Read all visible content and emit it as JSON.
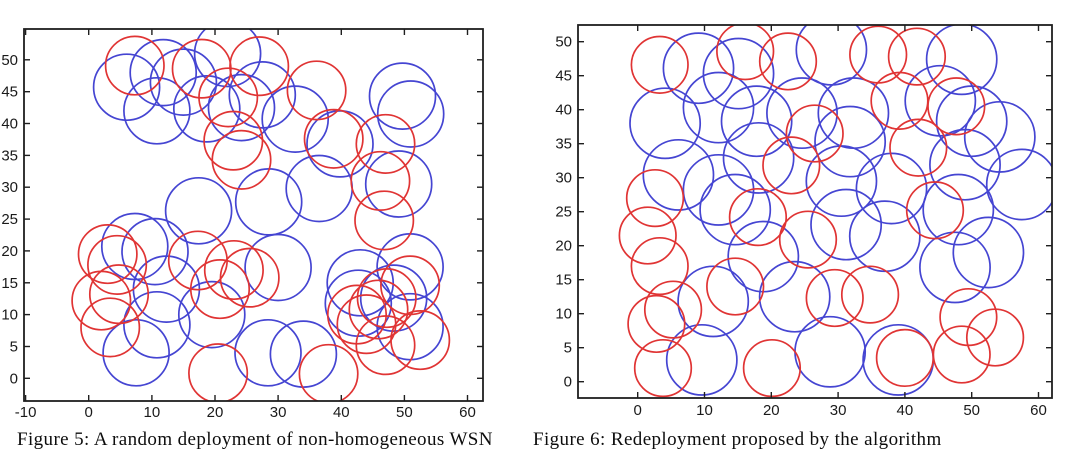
{
  "colors": {
    "blue_sensor": "#4545d2",
    "red_sensor": "#e03434",
    "axis": "#1f1f1f",
    "background": "#ffffff"
  },
  "captions": {
    "fig5": "Figure 5: A random deployment of non-homogeneous WSN",
    "fig6": "Figure 6: Redeployment proposed by the algorithm"
  },
  "chart_data": [
    {
      "id": "fig5",
      "type": "scatter",
      "title": "",
      "caption": "Figure 5: A random deployment of non-homogeneous WSN",
      "xlabel": "",
      "ylabel": "",
      "xlim": [
        -10.25,
        62.45
      ],
      "ylim": [
        -3.56,
        54.84
      ],
      "xticks": [
        -10,
        0,
        10,
        20,
        30,
        40,
        50,
        60
      ],
      "yticks": [
        0,
        5,
        10,
        15,
        20,
        25,
        30,
        35,
        40,
        45,
        50
      ],
      "grid": false,
      "legend": "none",
      "series": [
        {
          "name": "blue-sensor-coverage",
          "color_key": "blue_sensor",
          "marker": "open-circle",
          "radius_units": 5.2,
          "centers": [
            [
              6.0,
              45.7
            ],
            [
              11.8,
              48.0
            ],
            [
              15.0,
              46.5
            ],
            [
              10.8,
              42.0
            ],
            [
              18.7,
              42.3
            ],
            [
              22.0,
              51.0
            ],
            [
              24.2,
              42.5
            ],
            [
              27.5,
              44.5
            ],
            [
              32.7,
              40.7
            ],
            [
              39.8,
              36.8
            ],
            [
              49.7,
              44.3
            ],
            [
              51.0,
              41.5
            ],
            [
              49.1,
              30.5
            ],
            [
              36.5,
              29.8
            ],
            [
              28.5,
              27.7
            ],
            [
              17.4,
              26.3
            ],
            [
              7.3,
              20.7
            ],
            [
              10.5,
              19.9
            ],
            [
              12.3,
              14.0
            ],
            [
              10.8,
              8.4
            ],
            [
              7.5,
              4.0
            ],
            [
              19.5,
              10.0
            ],
            [
              28.4,
              4.0
            ],
            [
              34.0,
              3.8
            ],
            [
              30.0,
              17.4
            ],
            [
              43.0,
              15.0
            ],
            [
              48.3,
              12.6
            ],
            [
              50.9,
              17.5
            ],
            [
              42.7,
              11.8
            ],
            [
              50.9,
              8.1
            ]
          ]
        },
        {
          "name": "red-sensor-coverage",
          "color_key": "red_sensor",
          "marker": "open-circle",
          "radius_units": 4.6,
          "centers": [
            [
              7.3,
              49.1
            ],
            [
              17.9,
              48.6
            ],
            [
              27.0,
              49.0
            ],
            [
              22.1,
              44.1
            ],
            [
              36.1,
              45.2
            ],
            [
              38.8,
              37.6
            ],
            [
              47.0,
              36.8
            ],
            [
              46.2,
              31.0
            ],
            [
              46.8,
              24.8
            ],
            [
              22.9,
              37.3
            ],
            [
              24.2,
              34.3
            ],
            [
              3.0,
              19.5
            ],
            [
              4.5,
              17.8
            ],
            [
              2.0,
              12.2
            ],
            [
              4.8,
              13.2
            ],
            [
              3.4,
              8.0
            ],
            [
              17.3,
              18.5
            ],
            [
              20.8,
              14.0
            ],
            [
              23.0,
              17.0
            ],
            [
              25.5,
              15.8
            ],
            [
              20.5,
              0.8
            ],
            [
              38.0,
              0.7
            ],
            [
              42.5,
              10.0
            ],
            [
              44.0,
              8.5
            ],
            [
              45.9,
              10.8
            ],
            [
              47.2,
              12.6
            ],
            [
              50.9,
              14.6
            ],
            [
              47.0,
              5.2
            ],
            [
              52.5,
              6.0
            ]
          ]
        }
      ]
    },
    {
      "id": "fig6",
      "type": "scatter",
      "title": "",
      "caption": "Figure 6: Redeployment proposed by the algorithm",
      "xlabel": "",
      "ylabel": "",
      "xlim": [
        -8.93,
        62.02
      ],
      "ylim": [
        -2.4,
        52.45
      ],
      "xticks": [
        0,
        10,
        20,
        30,
        40,
        50,
        60
      ],
      "yticks": [
        0,
        5,
        10,
        15,
        20,
        25,
        30,
        35,
        40,
        45,
        50
      ],
      "grid": false,
      "legend": "none",
      "series": [
        {
          "name": "blue-sensor-coverage",
          "color_key": "blue_sensor",
          "marker": "open-circle",
          "radius_units": 5.2,
          "centers": [
            [
              9.1,
              46.1
            ],
            [
              15.1,
              45.3
            ],
            [
              4.1,
              38.0
            ],
            [
              12.1,
              40.3
            ],
            [
              17.8,
              38.3
            ],
            [
              24.6,
              39.5
            ],
            [
              29.0,
              48.8
            ],
            [
              48.5,
              47.4
            ],
            [
              45.3,
              41.3
            ],
            [
              32.3,
              39.5
            ],
            [
              31.8,
              35.3
            ],
            [
              50.0,
              38.3
            ],
            [
              54.2,
              36.0
            ],
            [
              49.0,
              31.9
            ],
            [
              30.5,
              29.5
            ],
            [
              38.0,
              28.4
            ],
            [
              48.0,
              25.3
            ],
            [
              57.5,
              29.0
            ],
            [
              6.1,
              30.4
            ],
            [
              12.1,
              28.2
            ],
            [
              14.6,
              25.3
            ],
            [
              18.8,
              18.4
            ],
            [
              23.5,
              12.5
            ],
            [
              11.3,
              11.8
            ],
            [
              9.6,
              3.2
            ],
            [
              31.2,
              23.1
            ],
            [
              37.0,
              21.4
            ],
            [
              47.5,
              16.8
            ],
            [
              52.5,
              19.0
            ],
            [
              28.8,
              4.4
            ],
            [
              39.0,
              3.2
            ],
            [
              18.1,
              32.9
            ]
          ]
        },
        {
          "name": "red-sensor-coverage",
          "color_key": "red_sensor",
          "marker": "open-circle",
          "radius_units": 4.2,
          "centers": [
            [
              3.3,
              46.6
            ],
            [
              16.1,
              48.6
            ],
            [
              22.5,
              47.1
            ],
            [
              36.0,
              48.1
            ],
            [
              41.8,
              47.8
            ],
            [
              39.2,
              41.3
            ],
            [
              47.7,
              40.5
            ],
            [
              42.0,
              34.4
            ],
            [
              26.5,
              36.5
            ],
            [
              23.0,
              31.8
            ],
            [
              2.6,
              27.0
            ],
            [
              1.5,
              21.5
            ],
            [
              3.3,
              17.0
            ],
            [
              2.8,
              8.5
            ],
            [
              3.8,
              2.0
            ],
            [
              14.6,
              14.0
            ],
            [
              20.1,
              2.0
            ],
            [
              25.5,
              20.9
            ],
            [
              29.5,
              12.3
            ],
            [
              34.8,
              12.8
            ],
            [
              44.5,
              25.2
            ],
            [
              49.5,
              9.5
            ],
            [
              48.5,
              4.0
            ],
            [
              40.0,
              3.5
            ],
            [
              53.5,
              6.5
            ],
            [
              18.0,
              24.2
            ],
            [
              5.3,
              10.6
            ]
          ]
        }
      ]
    }
  ]
}
